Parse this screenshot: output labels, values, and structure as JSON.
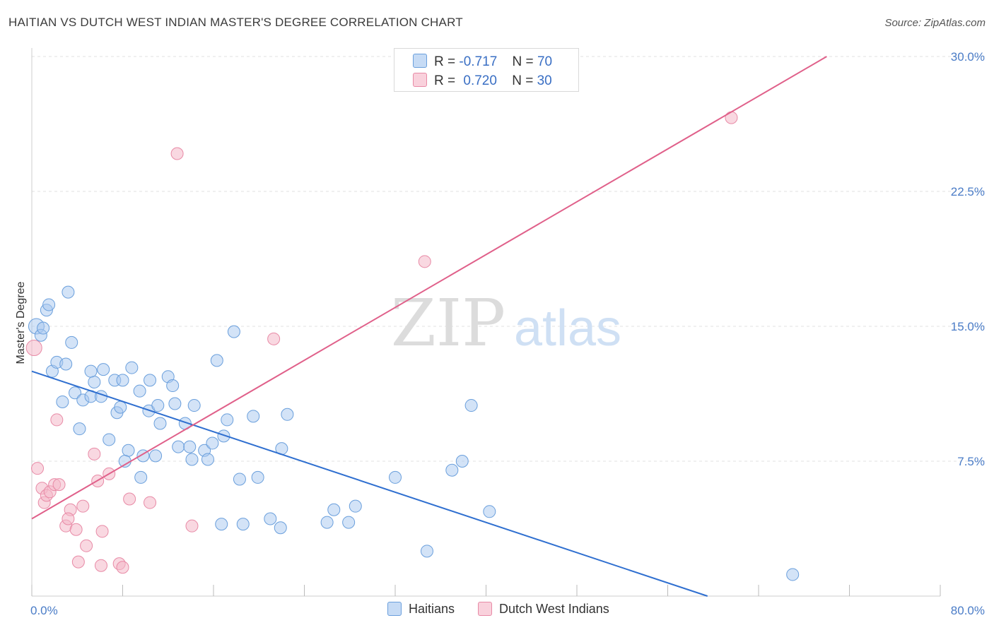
{
  "header": {
    "title": "HAITIAN VS DUTCH WEST INDIAN MASTER'S DEGREE CORRELATION CHART",
    "source": "Source: ZipAtlas.com"
  },
  "watermark": {
    "zip": "ZIP",
    "atlas": "atlas"
  },
  "legend": {
    "rows": [
      {
        "r_label": "R =",
        "r_value": "-0.717",
        "n_label": "N =",
        "n_value": "70",
        "color": "#a8c8f0"
      },
      {
        "r_label": "R =",
        "r_value": "0.720",
        "n_label": "N =",
        "n_value": "30",
        "color": "#f4b8c8"
      }
    ]
  },
  "colors": {
    "haitians_fill": "#a8c8f0",
    "haitians_stroke": "#6a9fdc",
    "haitians_line": "#2f6fd0",
    "dutch_fill": "#f4b8c8",
    "dutch_stroke": "#e88aa6",
    "dutch_line": "#e0608a",
    "grid": "#e2e2e2",
    "tick_text": "#4a7cc7"
  },
  "chart_data": {
    "type": "scatter",
    "title": "HAITIAN VS DUTCH WEST INDIAN MASTER'S DEGREE CORRELATION CHART",
    "xlabel": "",
    "ylabel": "Master's Degree",
    "xlim": [
      0,
      80
    ],
    "ylim": [
      0,
      30
    ],
    "x_tick_labels": [
      "0.0%",
      "80.0%"
    ],
    "y_ticks": [
      7.5,
      15.0,
      22.5,
      30.0
    ],
    "y_tick_labels": [
      "7.5%",
      "15.0%",
      "22.5%",
      "30.0%"
    ],
    "grid": true,
    "legend_position": "bottom",
    "series": [
      {
        "name": "Haitians",
        "color": "#a8c8f0",
        "trend": {
          "x": [
            0,
            59.5
          ],
          "y": [
            12.5,
            0
          ]
        },
        "points": [
          [
            0.4,
            15.0
          ],
          [
            0.8,
            14.5
          ],
          [
            1.3,
            15.9
          ],
          [
            1.5,
            16.2
          ],
          [
            3.2,
            16.9
          ],
          [
            1.8,
            12.5
          ],
          [
            2.2,
            13.0
          ],
          [
            3.0,
            12.9
          ],
          [
            3.5,
            14.1
          ],
          [
            3.8,
            11.3
          ],
          [
            4.5,
            10.9
          ],
          [
            5.2,
            11.1
          ],
          [
            5.5,
            11.9
          ],
          [
            2.7,
            10.8
          ],
          [
            6.1,
            11.1
          ],
          [
            5.2,
            12.5
          ],
          [
            6.3,
            12.6
          ],
          [
            7.3,
            12.0
          ],
          [
            8.0,
            12.0
          ],
          [
            8.8,
            12.7
          ],
          [
            9.5,
            11.4
          ],
          [
            10.4,
            12.0
          ],
          [
            12.0,
            12.2
          ],
          [
            12.4,
            11.7
          ],
          [
            7.5,
            10.2
          ],
          [
            7.8,
            10.5
          ],
          [
            10.3,
            10.3
          ],
          [
            11.1,
            10.6
          ],
          [
            12.6,
            10.7
          ],
          [
            14.3,
            10.6
          ],
          [
            4.2,
            9.3
          ],
          [
            6.8,
            8.7
          ],
          [
            11.3,
            9.6
          ],
          [
            13.5,
            9.6
          ],
          [
            17.2,
            9.8
          ],
          [
            19.5,
            10.0
          ],
          [
            22.5,
            10.1
          ],
          [
            16.3,
            13.1
          ],
          [
            17.8,
            14.7
          ],
          [
            8.5,
            8.1
          ],
          [
            9.8,
            7.8
          ],
          [
            10.9,
            7.8
          ],
          [
            8.2,
            7.5
          ],
          [
            12.9,
            8.3
          ],
          [
            13.9,
            8.3
          ],
          [
            15.2,
            8.1
          ],
          [
            15.9,
            8.5
          ],
          [
            16.9,
            8.9
          ],
          [
            14.1,
            7.6
          ],
          [
            15.5,
            7.6
          ],
          [
            22.0,
            8.2
          ],
          [
            9.6,
            6.6
          ],
          [
            18.3,
            6.5
          ],
          [
            19.9,
            6.6
          ],
          [
            32.0,
            6.6
          ],
          [
            37.0,
            7.0
          ],
          [
            37.9,
            7.5
          ],
          [
            38.7,
            10.6
          ],
          [
            40.3,
            4.7
          ],
          [
            26.6,
            4.8
          ],
          [
            28.5,
            5.0
          ],
          [
            16.7,
            4.0
          ],
          [
            18.6,
            4.0
          ],
          [
            21.0,
            4.3
          ],
          [
            21.9,
            3.8
          ],
          [
            26.0,
            4.1
          ],
          [
            27.9,
            4.1
          ],
          [
            34.8,
            2.5
          ],
          [
            67.0,
            1.2
          ],
          [
            1.0,
            14.9
          ]
        ]
      },
      {
        "name": "Dutch West Indians",
        "color": "#f4b8c8",
        "trend": {
          "x": [
            0,
            70
          ],
          "y": [
            4.3,
            30
          ]
        },
        "points": [
          [
            0.2,
            13.8
          ],
          [
            0.5,
            7.1
          ],
          [
            0.9,
            6.0
          ],
          [
            1.1,
            5.2
          ],
          [
            1.3,
            5.6
          ],
          [
            1.6,
            5.8
          ],
          [
            2.0,
            6.2
          ],
          [
            2.4,
            6.2
          ],
          [
            2.2,
            9.8
          ],
          [
            3.0,
            3.9
          ],
          [
            3.4,
            4.8
          ],
          [
            3.2,
            4.3
          ],
          [
            3.9,
            3.7
          ],
          [
            4.5,
            5.0
          ],
          [
            4.8,
            2.8
          ],
          [
            4.1,
            1.9
          ],
          [
            5.5,
            7.9
          ],
          [
            5.8,
            6.4
          ],
          [
            6.2,
            3.6
          ],
          [
            6.1,
            1.7
          ],
          [
            6.8,
            6.8
          ],
          [
            7.7,
            1.8
          ],
          [
            8.0,
            1.6
          ],
          [
            8.6,
            5.4
          ],
          [
            10.4,
            5.2
          ],
          [
            14.1,
            3.9
          ],
          [
            12.8,
            24.6
          ],
          [
            21.3,
            14.3
          ],
          [
            34.6,
            18.6
          ],
          [
            61.6,
            26.6
          ]
        ]
      }
    ]
  },
  "bottom_legend": {
    "items": [
      "Haitians",
      "Dutch West Indians"
    ]
  }
}
